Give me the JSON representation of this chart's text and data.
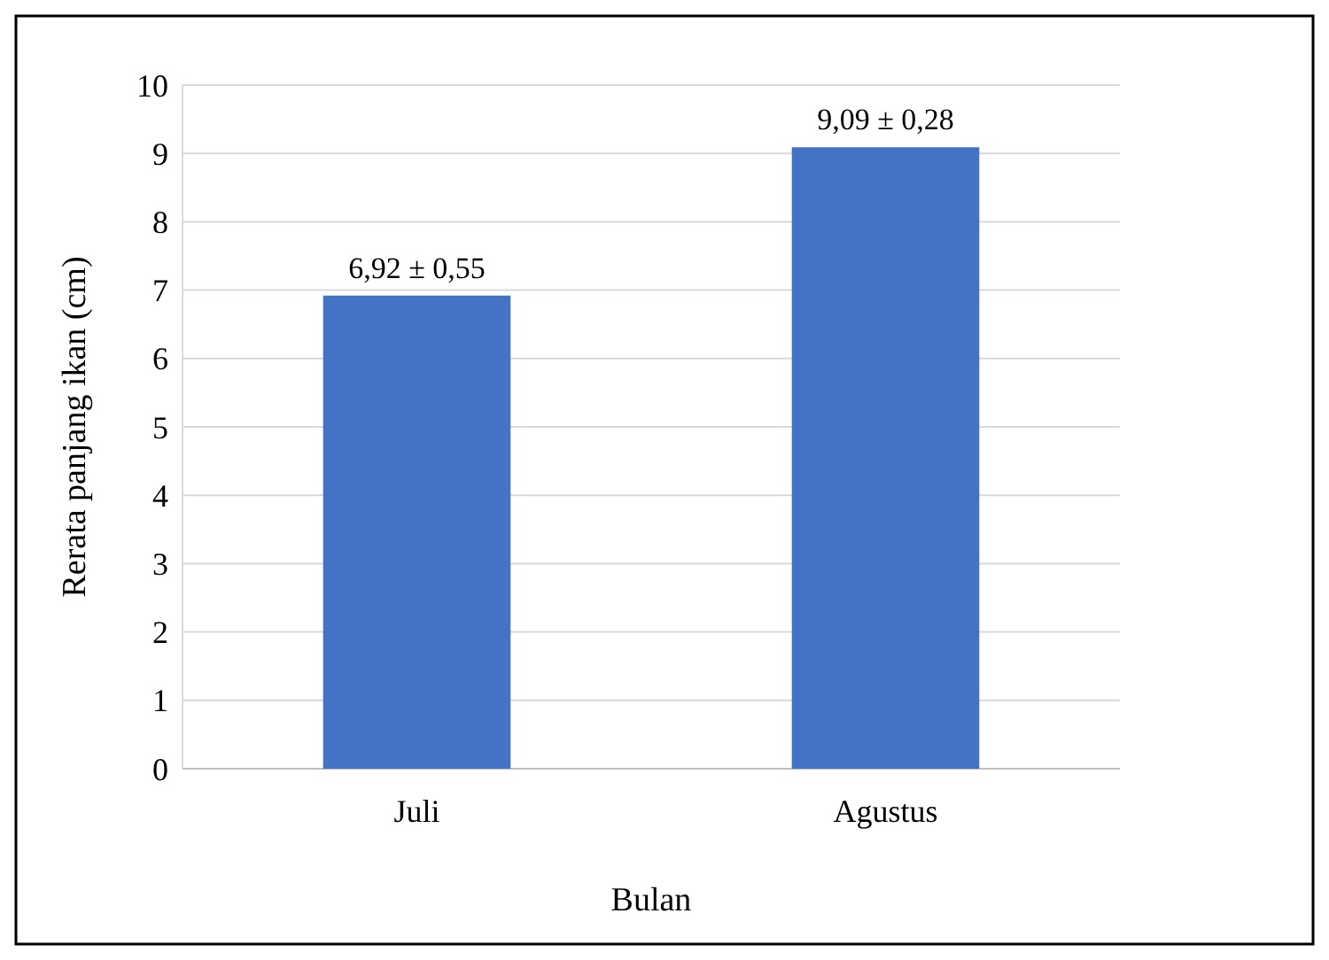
{
  "chart_data": {
    "type": "bar",
    "xlabel": "Bulan",
    "ylabel": "Rerata panjang ikan (cm)",
    "categories": [
      "Juli",
      "Agustus"
    ],
    "values": [
      6.92,
      9.09
    ],
    "value_labels": [
      "6,92 ± 0,55",
      "9,09 ± 0,28"
    ],
    "color": "#4472c4",
    "ylim": [
      0,
      10
    ],
    "yticks": [
      0,
      1,
      2,
      3,
      4,
      5,
      6,
      7,
      8,
      9,
      10
    ],
    "grid": "y"
  }
}
